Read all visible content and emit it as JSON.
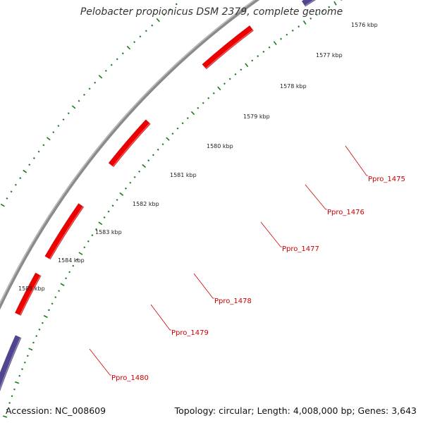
{
  "title": "Pelobacter propionicus DSM 2379, complete genome",
  "footer": {
    "accession": "Accession: NC_008609",
    "summary": "Topology: circular; Length: 4,008,000 bp; Genes: 3,643"
  },
  "colors": {
    "backbone": "#8a8a8a",
    "tick": "#1a7a1a",
    "label": "#cc0000",
    "gene_red": "#ee0000",
    "gene_purple": "#50458f",
    "gene_gray": "#666666",
    "gene_olive": "#b5b16a",
    "gene_navy": "#12128a",
    "gene_lavender": "#b4b4d8"
  },
  "kbp_ticks": [
    {
      "label": "1576 kbp"
    },
    {
      "label": "1577 kbp"
    },
    {
      "label": "1578 kbp"
    },
    {
      "label": "1579 kbp"
    },
    {
      "label": "1580 kbp"
    },
    {
      "label": "1581 kbp"
    },
    {
      "label": "1582 kbp"
    },
    {
      "label": "1583 kbp"
    },
    {
      "label": "1584 kbp"
    },
    {
      "label": "1585 kbp"
    }
  ],
  "gene_labels": [
    {
      "name": "Ppro_1475"
    },
    {
      "name": "Ppro_1476"
    },
    {
      "name": "Ppro_1477"
    },
    {
      "name": "Ppro_1478"
    },
    {
      "name": "Ppro_1479"
    },
    {
      "name": "Ppro_1480"
    }
  ]
}
